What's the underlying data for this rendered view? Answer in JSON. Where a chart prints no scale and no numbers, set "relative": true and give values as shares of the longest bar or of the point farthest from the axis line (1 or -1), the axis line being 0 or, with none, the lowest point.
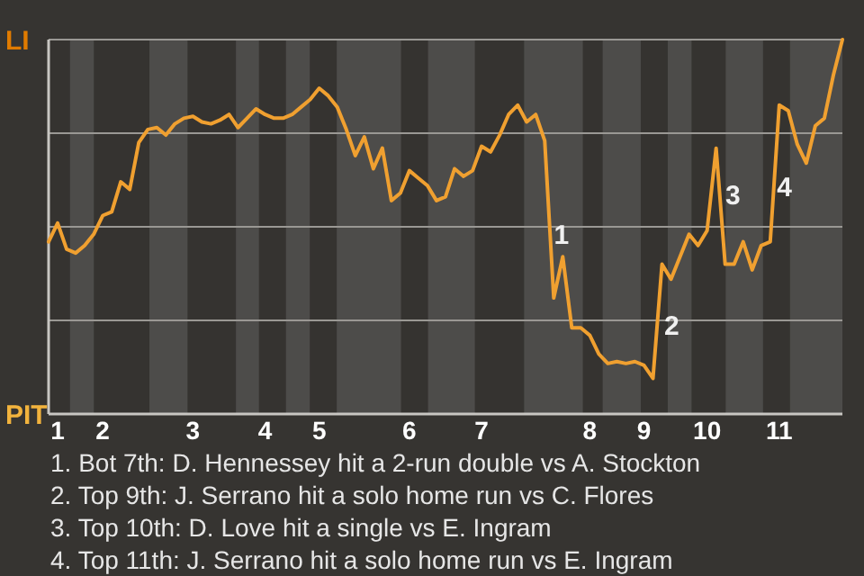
{
  "chart_data": {
    "type": "line",
    "marker": "none",
    "grid": "y",
    "relative": true,
    "categories": [
      null,
      "1",
      null,
      null,
      null,
      null,
      "2",
      null,
      null,
      null,
      null,
      null,
      null,
      null,
      null,
      null,
      "3",
      null,
      null,
      null,
      null,
      null,
      null,
      null,
      "4",
      null,
      null,
      null,
      null,
      null,
      "5",
      null,
      null,
      null,
      null,
      null,
      null,
      null,
      null,
      null,
      "6",
      null,
      null,
      null,
      null,
      null,
      null,
      null,
      "7",
      null,
      null,
      null,
      null,
      null,
      null,
      null,
      null,
      null,
      null,
      null,
      "8",
      null,
      null,
      null,
      null,
      null,
      "9",
      null,
      null,
      null,
      null,
      null,
      null,
      "10",
      null,
      null,
      null,
      null,
      null,
      null,
      null,
      "11",
      null,
      null,
      null,
      null,
      null,
      null,
      null
    ],
    "series": [
      {
        "color": "#f0a030",
        "values": [
          0.46,
          0.51,
          0.44,
          0.43,
          0.45,
          0.48,
          0.53,
          0.54,
          0.62,
          0.6,
          0.725,
          0.76,
          0.765,
          0.745,
          0.775,
          0.79,
          0.795,
          0.78,
          0.775,
          0.785,
          0.8,
          0.765,
          0.79,
          0.815,
          0.8,
          0.79,
          0.79,
          0.8,
          0.82,
          0.84,
          0.87,
          0.85,
          0.82,
          0.76,
          0.69,
          0.74,
          0.655,
          0.71,
          0.57,
          0.59,
          0.65,
          0.63,
          0.61,
          0.57,
          0.58,
          0.655,
          0.635,
          0.65,
          0.715,
          0.7,
          0.745,
          0.8,
          0.825,
          0.78,
          0.8,
          0.73,
          0.31,
          0.42,
          0.23,
          0.23,
          0.21,
          0.16,
          0.135,
          0.14,
          0.135,
          0.14,
          0.13,
          0.095,
          0.4,
          0.36,
          0.42,
          0.48,
          0.45,
          0.49,
          0.71,
          0.4,
          0.4,
          0.46,
          0.385,
          0.45,
          0.46,
          0.825,
          0.81,
          0.72,
          0.67,
          0.77,
          0.79,
          0.905,
          1
        ]
      }
    ],
    "annotations": [
      "PIT",
      "LI",
      "1",
      "2",
      "3",
      "4",
      "1. Bot 7th: D. Hennessey hit a 2-run double vs A. Stockton",
      "2. Top 9th: J. Serrano hit a solo home run vs C. Flores",
      "3. Top 10th: D. Love hit a single vs E. Ingram",
      "4. Top 11th: J. Serrano hit a solo home run vs E. Ingram"
    ]
  }
}
